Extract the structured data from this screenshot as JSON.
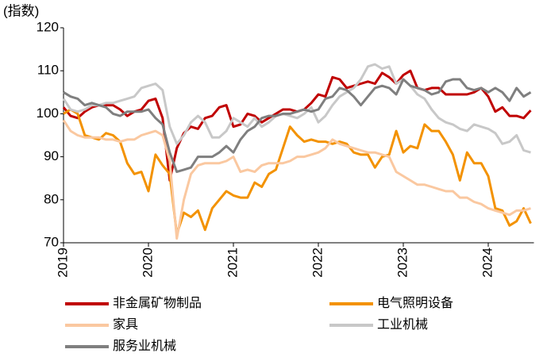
{
  "chart_data": {
    "type": "line",
    "y_label": "(指数)",
    "categories": [
      "2019",
      null,
      null,
      null,
      null,
      null,
      null,
      null,
      null,
      null,
      null,
      null,
      "2020",
      null,
      null,
      null,
      null,
      null,
      null,
      null,
      null,
      null,
      null,
      null,
      "2021",
      null,
      null,
      null,
      null,
      null,
      null,
      null,
      null,
      null,
      null,
      null,
      "2022",
      null,
      null,
      null,
      null,
      null,
      null,
      null,
      null,
      null,
      null,
      null,
      "2023",
      null,
      null,
      null,
      null,
      null,
      null,
      null,
      null,
      null,
      null,
      null,
      "2024",
      null,
      null,
      null,
      null,
      null,
      null
    ],
    "ylim": [
      70,
      120
    ],
    "yticks": [
      70,
      80,
      90,
      100,
      110,
      120
    ],
    "grid": false,
    "series": [
      {
        "name": "非金属矿物制品",
        "color": "#c00000",
        "values": [
          101.5,
          99.5,
          99,
          100.5,
          101.5,
          102,
          102,
          102,
          101,
          99.5,
          100.5,
          101,
          103,
          103.5,
          99,
          84.5,
          92,
          95.5,
          97,
          96.5,
          99,
          99.5,
          101.5,
          102,
          97,
          97.5,
          100,
          99.5,
          98,
          99,
          100,
          101,
          101,
          100.5,
          101,
          102.5,
          104.5,
          104,
          108.5,
          108,
          106,
          106.5,
          107,
          107.5,
          107,
          109.5,
          108.5,
          107,
          109,
          110,
          106,
          105.5,
          106,
          106,
          104.5,
          104.5,
          104.5,
          104.5,
          105,
          106,
          104,
          100.5,
          101.5,
          99.5,
          99.5,
          99,
          100.8
        ]
      },
      {
        "name": "电气照明设备",
        "color": "#f39200",
        "values": [
          100,
          101,
          100,
          95,
          94.5,
          94,
          95.5,
          95,
          93.5,
          88.5,
          86,
          86.5,
          82,
          90.5,
          88,
          86,
          72,
          77,
          76,
          77.5,
          73,
          78,
          80,
          82,
          81,
          80.5,
          80.5,
          84,
          83,
          86,
          87,
          92,
          97,
          95,
          93.5,
          94,
          93.5,
          93.5,
          93,
          93.5,
          93,
          91,
          90.5,
          90.5,
          87.5,
          90,
          90.5,
          96,
          91,
          92.5,
          92,
          97.5,
          96,
          96,
          93.5,
          90.5,
          84.5,
          91,
          88.5,
          88.5,
          85.5,
          78,
          77.5,
          74,
          75,
          78,
          74.5
        ]
      },
      {
        "name": "家具",
        "color": "#fac8a0",
        "values": [
          98.5,
          96,
          95,
          94.5,
          94.5,
          94.5,
          94,
          94,
          93.5,
          94,
          94,
          95,
          95.5,
          96,
          95,
          89,
          71,
          80,
          86,
          88,
          88.5,
          88.5,
          88.5,
          89,
          90,
          86.5,
          87,
          86.5,
          88,
          88.5,
          88.5,
          88.5,
          89,
          90,
          90,
          90.5,
          91,
          92,
          94,
          93,
          92.5,
          92,
          91.5,
          91,
          91,
          90.5,
          90,
          86.5,
          85.5,
          84.5,
          83.5,
          83.5,
          83,
          82.5,
          82,
          82,
          80.5,
          80.5,
          79.5,
          79,
          78,
          77.5,
          77,
          76.5,
          77.5,
          77.5,
          78
        ]
      },
      {
        "name": "工业机械",
        "color": "#c8c8c8",
        "values": [
          103.5,
          101,
          100.5,
          101,
          102,
          102,
          102.5,
          102.5,
          103,
          103.5,
          104,
          106,
          106.5,
          107,
          105.5,
          97,
          93,
          95,
          98,
          99.5,
          98,
          94.5,
          94.5,
          96,
          99,
          98,
          97,
          99,
          97,
          98,
          99.5,
          100,
          99.5,
          99,
          100,
          101.5,
          98,
          99.5,
          102,
          104,
          105,
          106,
          108,
          111,
          111.5,
          110.5,
          111,
          107,
          108,
          106.5,
          104.5,
          103.5,
          101,
          99,
          98,
          97.5,
          96.5,
          96,
          97.5,
          97,
          96.5,
          95.5,
          93,
          93.5,
          95,
          91.5,
          91
        ]
      },
      {
        "name": "服务业机械",
        "color": "#7f7f7f",
        "values": [
          105,
          104,
          103.5,
          102,
          102.5,
          102,
          101.5,
          100,
          99.5,
          100.5,
          100.5,
          100.5,
          101,
          99,
          97.5,
          91,
          86.5,
          87,
          87.5,
          90,
          90,
          90,
          91,
          92.5,
          91,
          94,
          96,
          97,
          99,
          99.5,
          99.5,
          100,
          100,
          100.5,
          101,
          100.5,
          101,
          103.5,
          104,
          106,
          105.5,
          104,
          102,
          104,
          106,
          106.5,
          106,
          104.5,
          108,
          106.5,
          106,
          105.5,
          104.5,
          105,
          107.5,
          108,
          108,
          106,
          105.5,
          106,
          105,
          106,
          105,
          103,
          106,
          104,
          105
        ]
      }
    ]
  }
}
